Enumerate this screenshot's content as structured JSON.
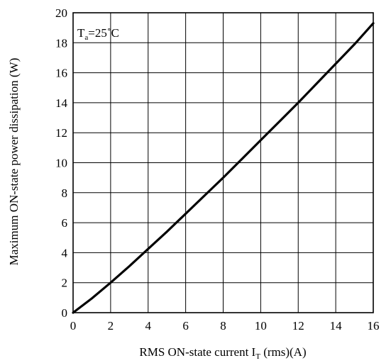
{
  "chart_data": {
    "type": "line",
    "xlabel": "RMS ON-state current I",
    "xlabel_sub": "T",
    "xlabel_suffix": " (rms)(A)",
    "ylabel": "Maximum ON-state power dissipation (W)",
    "annotation": {
      "main": "T",
      "sub": "a",
      "suffix": "=25˚C"
    },
    "xlim": [
      0,
      16
    ],
    "ylim": [
      0,
      20
    ],
    "x_ticks": [
      0,
      2,
      4,
      6,
      8,
      10,
      12,
      14,
      16
    ],
    "y_ticks": [
      0,
      2,
      4,
      6,
      8,
      10,
      12,
      14,
      16,
      18,
      20
    ],
    "grid": true,
    "series": [
      {
        "x": [
          0,
          1,
          2,
          3,
          4,
          5,
          6,
          7,
          8,
          9,
          10,
          11,
          12,
          13,
          14,
          15,
          16
        ],
        "y": [
          0,
          0.95,
          2.0,
          3.1,
          4.25,
          5.4,
          6.6,
          7.8,
          9.0,
          10.25,
          11.5,
          12.75,
          14.0,
          15.3,
          16.6,
          17.9,
          19.3
        ]
      }
    ]
  }
}
